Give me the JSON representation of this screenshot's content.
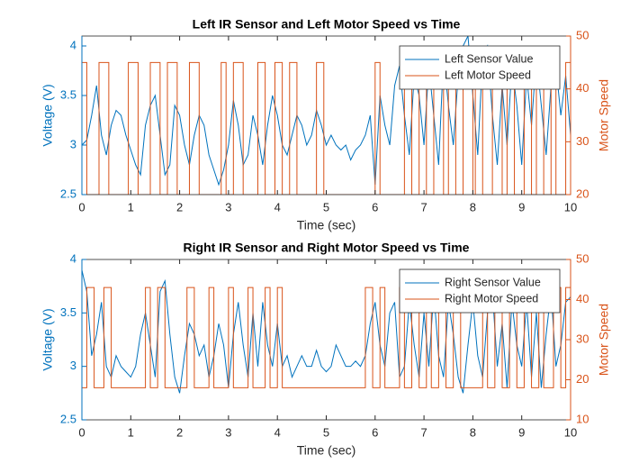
{
  "chart_data": [
    {
      "type": "line",
      "title": "Left IR Sensor and Left Motor Speed vs Time",
      "xlabel": "Time (sec)",
      "ylabel": "Voltage (V)",
      "y2label": "Motor Speed",
      "xlim": [
        0,
        10
      ],
      "xticks": [
        0,
        1,
        2,
        3,
        4,
        5,
        6,
        7,
        8,
        9,
        10
      ],
      "ylim": [
        2.5,
        4.1
      ],
      "yticks": [
        2.5,
        3,
        3.5,
        4
      ],
      "y2lim": [
        20,
        50
      ],
      "y2ticks": [
        20,
        30,
        40,
        50
      ],
      "legend": "northeast",
      "series": [
        {
          "name": "Left Sensor Value",
          "color": "#0072BD",
          "x": [
            0,
            0.1,
            0.2,
            0.3,
            0.4,
            0.5,
            0.6,
            0.7,
            0.8,
            0.9,
            1,
            1.1,
            1.2,
            1.3,
            1.4,
            1.5,
            1.6,
            1.7,
            1.8,
            1.9,
            2,
            2.1,
            2.2,
            2.3,
            2.4,
            2.5,
            2.6,
            2.7,
            2.8,
            2.9,
            3,
            3.1,
            3.2,
            3.3,
            3.4,
            3.5,
            3.6,
            3.7,
            3.8,
            3.9,
            4,
            4.1,
            4.2,
            4.3,
            4.4,
            4.5,
            4.6,
            4.7,
            4.8,
            4.9,
            5,
            5.1,
            5.2,
            5.3,
            5.4,
            5.5,
            5.6,
            5.7,
            5.8,
            5.9,
            6,
            6.1,
            6.2,
            6.3,
            6.4,
            6.5,
            6.6,
            6.7,
            6.8,
            6.9,
            7,
            7.1,
            7.2,
            7.3,
            7.4,
            7.5,
            7.6,
            7.7,
            7.8,
            7.9,
            8,
            8.1,
            8.2,
            8.3,
            8.4,
            8.5,
            8.6,
            8.7,
            8.8,
            8.9,
            9,
            9.1,
            9.2,
            9.3,
            9.4,
            9.5,
            9.6,
            9.7,
            9.8,
            9.9,
            10
          ],
          "values": [
            3.0,
            3.05,
            3.3,
            3.6,
            3.1,
            2.9,
            3.2,
            3.35,
            3.3,
            3.1,
            2.95,
            2.8,
            2.7,
            3.2,
            3.4,
            3.5,
            3.1,
            2.7,
            2.8,
            3.4,
            3.3,
            3.0,
            2.8,
            3.1,
            3.3,
            3.2,
            2.9,
            2.75,
            2.6,
            2.75,
            3.0,
            3.45,
            3.2,
            2.8,
            2.9,
            3.3,
            3.1,
            2.8,
            3.2,
            3.5,
            3.3,
            3.0,
            2.9,
            3.1,
            3.3,
            3.2,
            3.0,
            3.1,
            3.35,
            3.2,
            3.0,
            3.1,
            3.0,
            2.95,
            3.0,
            2.85,
            2.95,
            3.0,
            3.1,
            3.3,
            2.6,
            3.5,
            3.2,
            3.0,
            3.6,
            3.8,
            3.3,
            2.9,
            3.7,
            3.5,
            3.0,
            3.8,
            3.3,
            2.8,
            3.9,
            3.4,
            3.0,
            3.7,
            4.0,
            4.1,
            3.5,
            2.9,
            3.9,
            4.0,
            3.3,
            2.8,
            3.6,
            3.0,
            3.8,
            3.4,
            2.8,
            3.7,
            3.2,
            3.9,
            3.4,
            2.9,
            3.6,
            3.8,
            3.3,
            3.7,
            3.1
          ]
        },
        {
          "name": "Left Motor Speed",
          "color": "#D95319",
          "axis": "y2",
          "x": [
            0,
            0.1,
            0.1,
            0.35,
            0.35,
            0.55,
            0.55,
            0.95,
            0.95,
            1.15,
            1.15,
            1.4,
            1.4,
            1.6,
            1.6,
            1.75,
            1.75,
            1.95,
            1.95,
            2.2,
            2.2,
            2.4,
            2.4,
            2.85,
            2.85,
            2.95,
            2.95,
            3.1,
            3.1,
            3.3,
            3.3,
            3.6,
            3.6,
            3.75,
            3.75,
            3.95,
            3.95,
            4.1,
            4.1,
            4.25,
            4.25,
            4.4,
            4.4,
            4.8,
            4.8,
            4.95,
            4.95,
            6.0,
            6.0,
            6.1,
            6.1,
            6.6,
            6.6,
            6.75,
            6.75,
            6.9,
            6.9,
            7.05,
            7.05,
            7.2,
            7.2,
            7.4,
            7.4,
            7.5,
            7.5,
            7.65,
            7.65,
            7.8,
            7.8,
            8.0,
            8.0,
            8.05,
            8.05,
            8.2,
            8.2,
            8.4,
            8.4,
            8.6,
            8.6,
            8.7,
            8.7,
            8.85,
            8.85,
            9.05,
            9.05,
            9.2,
            9.2,
            9.3,
            9.3,
            9.45,
            9.45,
            9.6,
            9.6,
            9.7,
            9.7,
            9.9,
            9.9,
            10
          ],
          "values": [
            45,
            45,
            20,
            20,
            45,
            45,
            20,
            20,
            45,
            45,
            20,
            20,
            45,
            45,
            20,
            20,
            45,
            45,
            20,
            20,
            45,
            45,
            20,
            20,
            45,
            45,
            20,
            20,
            45,
            45,
            20,
            20,
            45,
            45,
            20,
            20,
            45,
            45,
            20,
            20,
            45,
            45,
            20,
            20,
            45,
            45,
            20,
            20,
            45,
            45,
            20,
            20,
            45,
            45,
            20,
            20,
            45,
            45,
            20,
            20,
            45,
            45,
            20,
            20,
            45,
            45,
            20,
            20,
            45,
            45,
            20,
            20,
            45,
            45,
            20,
            20,
            45,
            45,
            20,
            20,
            45,
            45,
            20,
            20,
            45,
            45,
            20,
            20,
            45,
            45,
            20,
            20,
            45,
            45,
            20,
            20,
            45,
            45
          ]
        }
      ]
    },
    {
      "type": "line",
      "title": "Right IR Sensor and Right Motor Speed vs Time",
      "xlabel": "Time (sec)",
      "ylabel": "Voltage (V)",
      "y2label": "Motor Speed",
      "xlim": [
        0,
        10
      ],
      "xticks": [
        0,
        1,
        2,
        3,
        4,
        5,
        6,
        7,
        8,
        9,
        10
      ],
      "ylim": [
        2.5,
        4
      ],
      "yticks": [
        2.5,
        3,
        3.5,
        4
      ],
      "y2lim": [
        10,
        50
      ],
      "y2ticks": [
        10,
        20,
        30,
        40,
        50
      ],
      "legend": "northeast",
      "series": [
        {
          "name": "Right Sensor Value",
          "color": "#0072BD",
          "x": [
            0,
            0.1,
            0.2,
            0.3,
            0.4,
            0.5,
            0.6,
            0.7,
            0.8,
            0.9,
            1,
            1.1,
            1.2,
            1.3,
            1.4,
            1.5,
            1.6,
            1.7,
            1.8,
            1.9,
            2,
            2.1,
            2.2,
            2.3,
            2.4,
            2.5,
            2.6,
            2.7,
            2.8,
            2.9,
            3,
            3.1,
            3.2,
            3.3,
            3.4,
            3.5,
            3.6,
            3.7,
            3.8,
            3.9,
            4,
            4.1,
            4.2,
            4.3,
            4.4,
            4.5,
            4.6,
            4.7,
            4.8,
            4.9,
            5,
            5.1,
            5.2,
            5.3,
            5.4,
            5.5,
            5.6,
            5.7,
            5.8,
            5.9,
            6,
            6.1,
            6.2,
            6.3,
            6.4,
            6.5,
            6.6,
            6.7,
            6.8,
            6.9,
            7,
            7.1,
            7.2,
            7.3,
            7.4,
            7.5,
            7.6,
            7.7,
            7.8,
            7.9,
            8,
            8.1,
            8.2,
            8.3,
            8.4,
            8.5,
            8.6,
            8.7,
            8.8,
            8.9,
            9,
            9.1,
            9.2,
            9.3,
            9.4,
            9.5,
            9.6,
            9.7,
            9.8,
            9.9,
            10
          ],
          "values": [
            3.9,
            3.7,
            3.1,
            3.3,
            3.6,
            3.0,
            2.9,
            3.1,
            3.0,
            2.95,
            2.9,
            3.0,
            3.3,
            3.5,
            3.2,
            2.9,
            3.7,
            3.8,
            3.3,
            2.9,
            2.75,
            3.1,
            3.4,
            3.3,
            3.1,
            3.2,
            2.9,
            3.1,
            3.4,
            3.2,
            2.8,
            3.3,
            3.6,
            3.2,
            2.9,
            3.5,
            3.0,
            3.6,
            3.2,
            3.0,
            3.4,
            3.0,
            3.1,
            2.9,
            3.0,
            3.1,
            3.0,
            3.0,
            3.15,
            3.0,
            2.95,
            3.0,
            3.2,
            3.1,
            3.0,
            3.0,
            3.05,
            3.0,
            3.1,
            3.4,
            3.6,
            3.2,
            3.0,
            3.5,
            3.6,
            2.9,
            3.0,
            3.6,
            3.2,
            2.9,
            3.5,
            3.0,
            3.7,
            3.1,
            2.9,
            3.6,
            3.3,
            2.9,
            2.75,
            3.2,
            3.6,
            3.1,
            2.9,
            3.5,
            3.7,
            3.0,
            3.4,
            2.8,
            3.6,
            3.2,
            3.0,
            3.6,
            2.9,
            3.5,
            2.8,
            3.3,
            3.7,
            3.0,
            3.2,
            3.6,
            3.65
          ]
        },
        {
          "name": "Right Motor Speed",
          "color": "#D95319",
          "axis": "y2",
          "x": [
            0,
            0.1,
            0.1,
            0.25,
            0.25,
            0.45,
            0.45,
            0.6,
            0.6,
            1.3,
            1.3,
            1.4,
            1.4,
            1.55,
            1.55,
            1.7,
            1.7,
            2.15,
            2.15,
            2.3,
            2.3,
            2.6,
            2.6,
            2.7,
            2.7,
            3.0,
            3.0,
            3.1,
            3.1,
            3.4,
            3.4,
            3.5,
            3.5,
            3.75,
            3.75,
            3.85,
            3.85,
            4.0,
            4.0,
            4.1,
            4.1,
            5.8,
            5.8,
            5.95,
            5.95,
            6.1,
            6.1,
            6.2,
            6.2,
            6.5,
            6.5,
            6.6,
            6.6,
            6.75,
            6.75,
            6.9,
            6.9,
            7.05,
            7.05,
            7.15,
            7.15,
            7.3,
            7.3,
            7.45,
            7.45,
            7.6,
            7.6,
            7.75,
            7.75,
            8.2,
            8.2,
            8.3,
            8.3,
            8.45,
            8.45,
            8.6,
            8.6,
            8.75,
            8.75,
            8.9,
            8.9,
            9.05,
            9.05,
            9.2,
            9.2,
            9.35,
            9.35,
            9.45,
            9.45,
            9.65,
            9.65,
            9.8,
            9.8,
            9.9,
            9.9,
            10
          ],
          "values": [
            18,
            18,
            43,
            43,
            18,
            18,
            43,
            43,
            18,
            18,
            43,
            43,
            18,
            18,
            43,
            43,
            18,
            18,
            43,
            43,
            18,
            18,
            43,
            43,
            18,
            18,
            43,
            43,
            18,
            18,
            43,
            43,
            18,
            18,
            43,
            43,
            18,
            18,
            43,
            43,
            18,
            18,
            43,
            43,
            18,
            18,
            43,
            43,
            18,
            18,
            43,
            43,
            18,
            18,
            43,
            43,
            18,
            18,
            43,
            43,
            18,
            18,
            43,
            43,
            18,
            18,
            43,
            43,
            18,
            18,
            43,
            43,
            18,
            18,
            43,
            43,
            18,
            18,
            43,
            43,
            18,
            18,
            43,
            43,
            18,
            18,
            43,
            43,
            18,
            18,
            43,
            43,
            18,
            18,
            43,
            43
          ]
        }
      ]
    }
  ]
}
